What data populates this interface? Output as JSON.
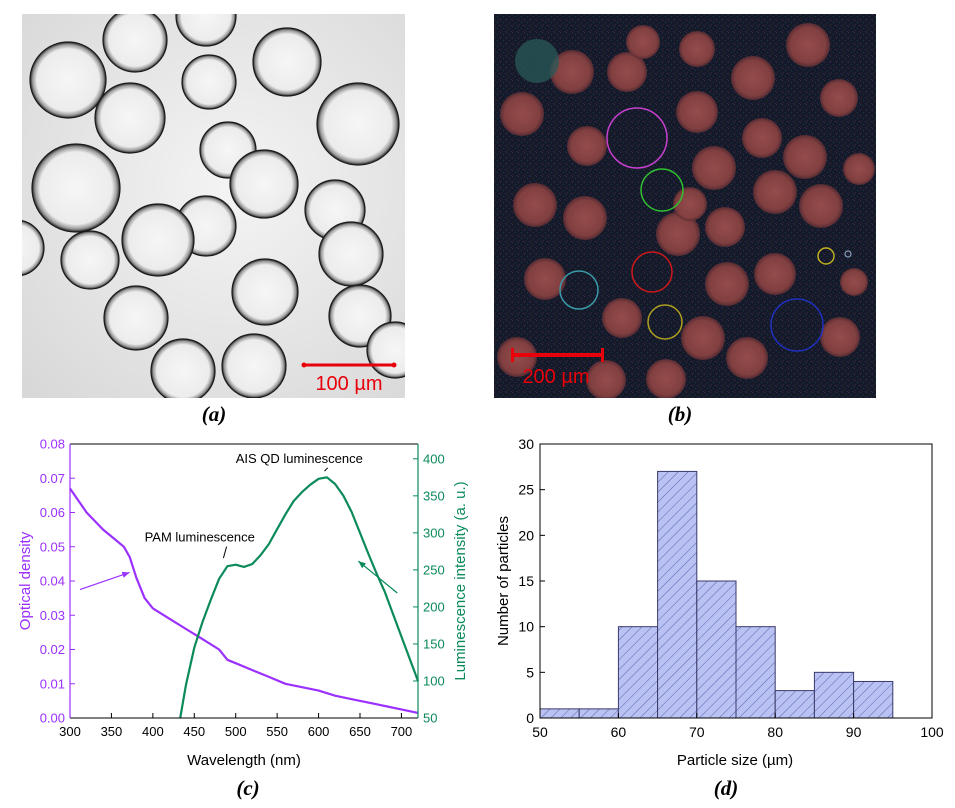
{
  "panels": {
    "a": {
      "caption": "(a)",
      "scale_bar": "100 µm"
    },
    "b": {
      "caption": "(b)",
      "scale_bar": "200 µm"
    },
    "c": {
      "caption": "(c)"
    },
    "d": {
      "caption": "(d)"
    }
  },
  "colors": {
    "purple": "#9b30ff",
    "green": "#0b8a5a",
    "red": "#e8000b",
    "bar_fill": "#b9c2f2",
    "bar_edge": "#3a3a6a"
  },
  "chart_data": [
    {
      "type": "line",
      "xlabel": "Wavelength (nm)",
      "ylabel": "Optical density",
      "y2label": "Luminescence intensity (a. u.)",
      "xlim": [
        300,
        720
      ],
      "ylim": [
        0,
        0.08
      ],
      "y2lim": [
        50,
        420
      ],
      "x_ticks": [
        300,
        350,
        400,
        450,
        500,
        550,
        600,
        650,
        700
      ],
      "y_ticks": [
        0.0,
        0.01,
        0.02,
        0.03,
        0.04,
        0.05,
        0.06,
        0.07,
        0.08
      ],
      "y_tick_labels": [
        "0.00",
        "0.01",
        "0.02",
        "0.03",
        "0.04",
        "0.05",
        "0.06",
        "0.07",
        "0.08"
      ],
      "y2_ticks": [
        50,
        100,
        150,
        200,
        250,
        300,
        350,
        400
      ],
      "series": [
        {
          "axis": "left",
          "color": "#9b30ff",
          "x": [
            300,
            320,
            340,
            355,
            365,
            372,
            380,
            390,
            400,
            420,
            440,
            460,
            480,
            490,
            500,
            520,
            540,
            560,
            580,
            600,
            620,
            640,
            660,
            680,
            700,
            720
          ],
          "y": [
            0.067,
            0.06,
            0.055,
            0.052,
            0.05,
            0.047,
            0.041,
            0.035,
            0.032,
            0.029,
            0.026,
            0.023,
            0.02,
            0.017,
            0.016,
            0.014,
            0.012,
            0.01,
            0.009,
            0.008,
            0.0065,
            0.0055,
            0.0045,
            0.0035,
            0.0025,
            0.0015
          ]
        },
        {
          "axis": "right",
          "color": "#0b8a5a",
          "x": [
            433,
            440,
            450,
            460,
            470,
            480,
            490,
            500,
            510,
            520,
            530,
            540,
            550,
            560,
            570,
            580,
            590,
            600,
            610,
            620,
            630,
            640,
            650,
            660,
            670,
            680,
            690,
            700,
            710,
            720
          ],
          "y": [
            50,
            95,
            145,
            180,
            210,
            238,
            255,
            257,
            254,
            258,
            270,
            285,
            305,
            325,
            343,
            355,
            365,
            373,
            375,
            366,
            350,
            328,
            300,
            272,
            245,
            220,
            190,
            160,
            130,
            100
          ]
        }
      ],
      "annotations": [
        {
          "text": "AIS QD luminescence",
          "label_x": 500,
          "label_y": 0.0745,
          "tip_x": 612,
          "tip_y": 0.0712,
          "color": "#000000"
        },
        {
          "text": "PAM luminescence",
          "label_x": 390,
          "label_y": 0.0515,
          "tip_x": 490,
          "tip_y": 0.0458,
          "color": "#000000"
        },
        {
          "text": "",
          "from_x": 312,
          "from_y": 0.0375,
          "tip_x": 372,
          "tip_y": 0.0425,
          "color": "#9b30ff"
        },
        {
          "text": "",
          "from_x": 695,
          "from_y": 0.0365,
          "tip_x": 648,
          "tip_y": 0.0458,
          "color": "#0b8a5a"
        }
      ]
    },
    {
      "type": "bar",
      "xlabel": "Particle size (µm)",
      "ylabel": "Number of particles",
      "xlim": [
        50,
        100
      ],
      "ylim": [
        0,
        30
      ],
      "x_ticks": [
        50,
        60,
        70,
        80,
        90,
        100
      ],
      "y_ticks": [
        0,
        5,
        10,
        15,
        20,
        25,
        30
      ],
      "bins": [
        [
          50,
          55
        ],
        [
          55,
          60
        ],
        [
          60,
          65
        ],
        [
          65,
          70
        ],
        [
          70,
          75
        ],
        [
          75,
          80
        ],
        [
          80,
          85
        ],
        [
          85,
          90
        ],
        [
          90,
          95
        ]
      ],
      "values": [
        1,
        1,
        10,
        27,
        15,
        10,
        3,
        5,
        4
      ]
    }
  ]
}
